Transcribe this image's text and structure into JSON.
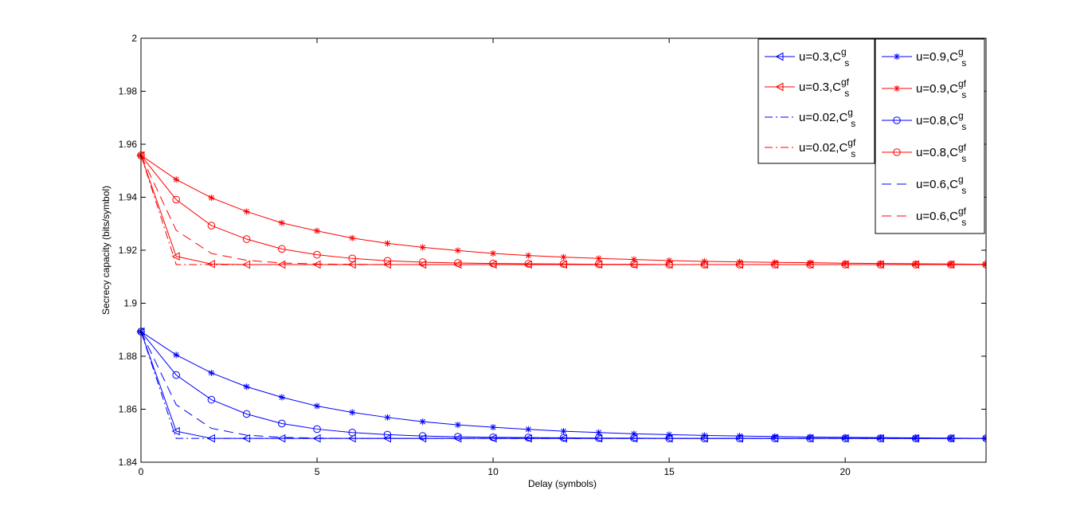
{
  "chart_data": {
    "type": "line",
    "title": "",
    "xlabel": "Delay (symbols)",
    "ylabel": "Secrecy capacity (bits/symbol)",
    "xlim": [
      0,
      24
    ],
    "ylim": [
      1.84,
      2.0
    ],
    "xticks": [
      0,
      5,
      10,
      15,
      20
    ],
    "yticks": [
      1.84,
      1.86,
      1.88,
      1.9,
      1.92,
      1.94,
      1.96,
      1.98,
      2.0
    ],
    "ytick_labels": [
      "1.84",
      "1.86",
      "1.88",
      "1.9",
      "1.92",
      "1.94",
      "1.96",
      "1.98",
      "2"
    ],
    "grid": false,
    "legend_placement": "top-right",
    "series": [
      {
        "name": "u=0.3,C_s^g",
        "label_main": "u=0.3,C",
        "label_sup": "g",
        "label_sub": "s",
        "color": "#0000ff",
        "marker": "triangle-left",
        "dash": "solid",
        "x": [
          0,
          1,
          2,
          3,
          4,
          5,
          6,
          7,
          8,
          9,
          10,
          11,
          12,
          13,
          14,
          15,
          16,
          17,
          18,
          19,
          20,
          21,
          22,
          23,
          24
        ],
        "y": [
          1.8893,
          1.8517,
          1.849,
          1.849,
          1.849,
          1.849,
          1.849,
          1.849,
          1.849,
          1.849,
          1.849,
          1.849,
          1.849,
          1.849,
          1.849,
          1.849,
          1.849,
          1.849,
          1.849,
          1.849,
          1.849,
          1.849,
          1.849,
          1.849,
          1.849
        ]
      },
      {
        "name": "u=0.3,C_s^gf",
        "label_main": "u=0.3,C",
        "label_sup": "gf",
        "label_sub": "s",
        "color": "#ff0000",
        "marker": "triangle-left",
        "dash": "solid",
        "x": [
          0,
          1,
          2,
          3,
          4,
          5,
          6,
          7,
          8,
          9,
          10,
          11,
          12,
          13,
          14,
          15,
          16,
          17,
          18,
          19,
          20,
          21,
          22,
          23,
          24
        ],
        "y": [
          1.9558,
          1.9177,
          1.9148,
          1.9146,
          1.9146,
          1.9146,
          1.9146,
          1.9146,
          1.9146,
          1.9146,
          1.9146,
          1.9146,
          1.9146,
          1.9146,
          1.9146,
          1.9146,
          1.9146,
          1.9146,
          1.9146,
          1.9146,
          1.9146,
          1.9146,
          1.9146,
          1.9146,
          1.9146
        ]
      },
      {
        "name": "u=0.02,C_s^g",
        "label_main": "u=0.02,C",
        "label_sup": "g",
        "label_sub": "s",
        "color": "#0000ff",
        "marker": "none",
        "dash": "dashdot",
        "x": [
          0,
          1,
          2,
          3,
          4,
          5,
          6,
          7,
          8,
          9,
          10,
          11,
          12,
          13,
          14,
          15,
          16,
          17,
          18,
          19,
          20,
          21,
          22,
          23,
          24
        ],
        "y": [
          1.8893,
          1.849,
          1.849,
          1.849,
          1.849,
          1.849,
          1.849,
          1.849,
          1.849,
          1.849,
          1.849,
          1.849,
          1.849,
          1.849,
          1.849,
          1.849,
          1.849,
          1.849,
          1.849,
          1.849,
          1.849,
          1.849,
          1.849,
          1.849,
          1.849
        ]
      },
      {
        "name": "u=0.02,C_s^gf",
        "label_main": "u=0.02,C",
        "label_sup": "gf",
        "label_sub": "s",
        "color": "#ff0000",
        "marker": "none",
        "dash": "dashdot",
        "x": [
          0,
          1,
          2,
          3,
          4,
          5,
          6,
          7,
          8,
          9,
          10,
          11,
          12,
          13,
          14,
          15,
          16,
          17,
          18,
          19,
          20,
          21,
          22,
          23,
          24
        ],
        "y": [
          1.9558,
          1.9146,
          1.9146,
          1.9146,
          1.9146,
          1.9146,
          1.9146,
          1.9146,
          1.9146,
          1.9146,
          1.9146,
          1.9146,
          1.9146,
          1.9146,
          1.9146,
          1.9146,
          1.9146,
          1.9146,
          1.9146,
          1.9146,
          1.9146,
          1.9146,
          1.9146,
          1.9146,
          1.9146
        ]
      },
      {
        "name": "u=0.9,C_s^g",
        "label_main": "u=0.9,C",
        "label_sup": "g",
        "label_sub": "s",
        "color": "#0000ff",
        "marker": "star",
        "dash": "solid",
        "x": [
          0,
          1,
          2,
          3,
          4,
          5,
          6,
          7,
          8,
          9,
          10,
          11,
          12,
          13,
          14,
          15,
          16,
          17,
          18,
          19,
          20,
          21,
          22,
          23,
          24
        ],
        "y": [
          1.8893,
          1.8805,
          1.8737,
          1.8685,
          1.8645,
          1.8612,
          1.8588,
          1.8569,
          1.8553,
          1.8541,
          1.8532,
          1.8524,
          1.8517,
          1.8512,
          1.8507,
          1.8504,
          1.8501,
          1.8499,
          1.8497,
          1.8495,
          1.8494,
          1.8493,
          1.8492,
          1.8491,
          1.849
        ]
      },
      {
        "name": "u=0.9,C_s^gf",
        "label_main": "u=0.9,C",
        "label_sup": "gf",
        "label_sub": "s",
        "color": "#ff0000",
        "marker": "star",
        "dash": "solid",
        "x": [
          0,
          1,
          2,
          3,
          4,
          5,
          6,
          7,
          8,
          9,
          10,
          11,
          12,
          13,
          14,
          15,
          16,
          17,
          18,
          19,
          20,
          21,
          22,
          23,
          24
        ],
        "y": [
          1.9558,
          1.9467,
          1.9398,
          1.9346,
          1.9303,
          1.9273,
          1.9246,
          1.9226,
          1.9211,
          1.9199,
          1.9188,
          1.918,
          1.9174,
          1.9169,
          1.9165,
          1.9161,
          1.9158,
          1.9156,
          1.9154,
          1.9153,
          1.9151,
          1.915,
          1.9149,
          1.9148,
          1.9147
        ]
      },
      {
        "name": "u=0.8,C_s^g",
        "label_main": "u=0.8,C",
        "label_sup": "g",
        "label_sub": "s",
        "color": "#0000ff",
        "marker": "circle",
        "dash": "solid",
        "x": [
          0,
          1,
          2,
          3,
          4,
          5,
          6,
          7,
          8,
          9,
          10,
          11,
          12,
          13,
          14,
          15,
          16,
          17,
          18,
          19,
          20,
          21,
          22,
          23,
          24
        ],
        "y": [
          1.8893,
          1.8729,
          1.8636,
          1.8582,
          1.8546,
          1.8525,
          1.8512,
          1.8504,
          1.8499,
          1.8496,
          1.8494,
          1.8493,
          1.8492,
          1.8491,
          1.8491,
          1.849,
          1.849,
          1.849,
          1.849,
          1.849,
          1.849,
          1.849,
          1.849,
          1.849,
          1.849
        ]
      },
      {
        "name": "u=0.8,C_s^gf",
        "label_main": "u=0.8,C",
        "label_sup": "gf",
        "label_sub": "s",
        "color": "#ff0000",
        "marker": "circle",
        "dash": "solid",
        "x": [
          0,
          1,
          2,
          3,
          4,
          5,
          6,
          7,
          8,
          9,
          10,
          11,
          12,
          13,
          14,
          15,
          16,
          17,
          18,
          19,
          20,
          21,
          22,
          23,
          24
        ],
        "y": [
          1.9558,
          1.9391,
          1.9293,
          1.9242,
          1.9205,
          1.9183,
          1.9169,
          1.916,
          1.9155,
          1.9152,
          1.915,
          1.9149,
          1.9148,
          1.9147,
          1.9147,
          1.9146,
          1.9146,
          1.9146,
          1.9146,
          1.9146,
          1.9146,
          1.9146,
          1.9146,
          1.9146,
          1.9146
        ]
      },
      {
        "name": "u=0.6,C_s^g",
        "label_main": "u=0.6,C",
        "label_sup": "g",
        "label_sub": "s",
        "color": "#0000ff",
        "marker": "none",
        "dash": "dash",
        "x": [
          0,
          1,
          2,
          3,
          4,
          5,
          6,
          7,
          8,
          9,
          10,
          11,
          12,
          13,
          14,
          15,
          16,
          17,
          18,
          19,
          20,
          21,
          22,
          23,
          24
        ],
        "y": [
          1.8893,
          1.8617,
          1.8528,
          1.8502,
          1.8494,
          1.8491,
          1.849,
          1.849,
          1.849,
          1.849,
          1.849,
          1.849,
          1.849,
          1.849,
          1.849,
          1.849,
          1.849,
          1.849,
          1.849,
          1.849,
          1.849,
          1.849,
          1.849,
          1.849,
          1.849
        ]
      },
      {
        "name": "u=0.6,C_s^gf",
        "label_main": "u=0.6,C",
        "label_sup": "gf",
        "label_sub": "s",
        "color": "#ff0000",
        "marker": "none",
        "dash": "dash",
        "x": [
          0,
          1,
          2,
          3,
          4,
          5,
          6,
          7,
          8,
          9,
          10,
          11,
          12,
          13,
          14,
          15,
          16,
          17,
          18,
          19,
          20,
          21,
          22,
          23,
          24
        ],
        "y": [
          1.9558,
          1.9275,
          1.9188,
          1.9162,
          1.9152,
          1.9148,
          1.9147,
          1.9146,
          1.9146,
          1.9146,
          1.9146,
          1.9146,
          1.9146,
          1.9146,
          1.9146,
          1.9146,
          1.9146,
          1.9146,
          1.9146,
          1.9146,
          1.9146,
          1.9146,
          1.9146,
          1.9146,
          1.9146
        ]
      }
    ],
    "legends": [
      {
        "series_indices": [
          0,
          1,
          2,
          3
        ]
      },
      {
        "series_indices": [
          4,
          5,
          6,
          7,
          8,
          9
        ]
      }
    ]
  }
}
